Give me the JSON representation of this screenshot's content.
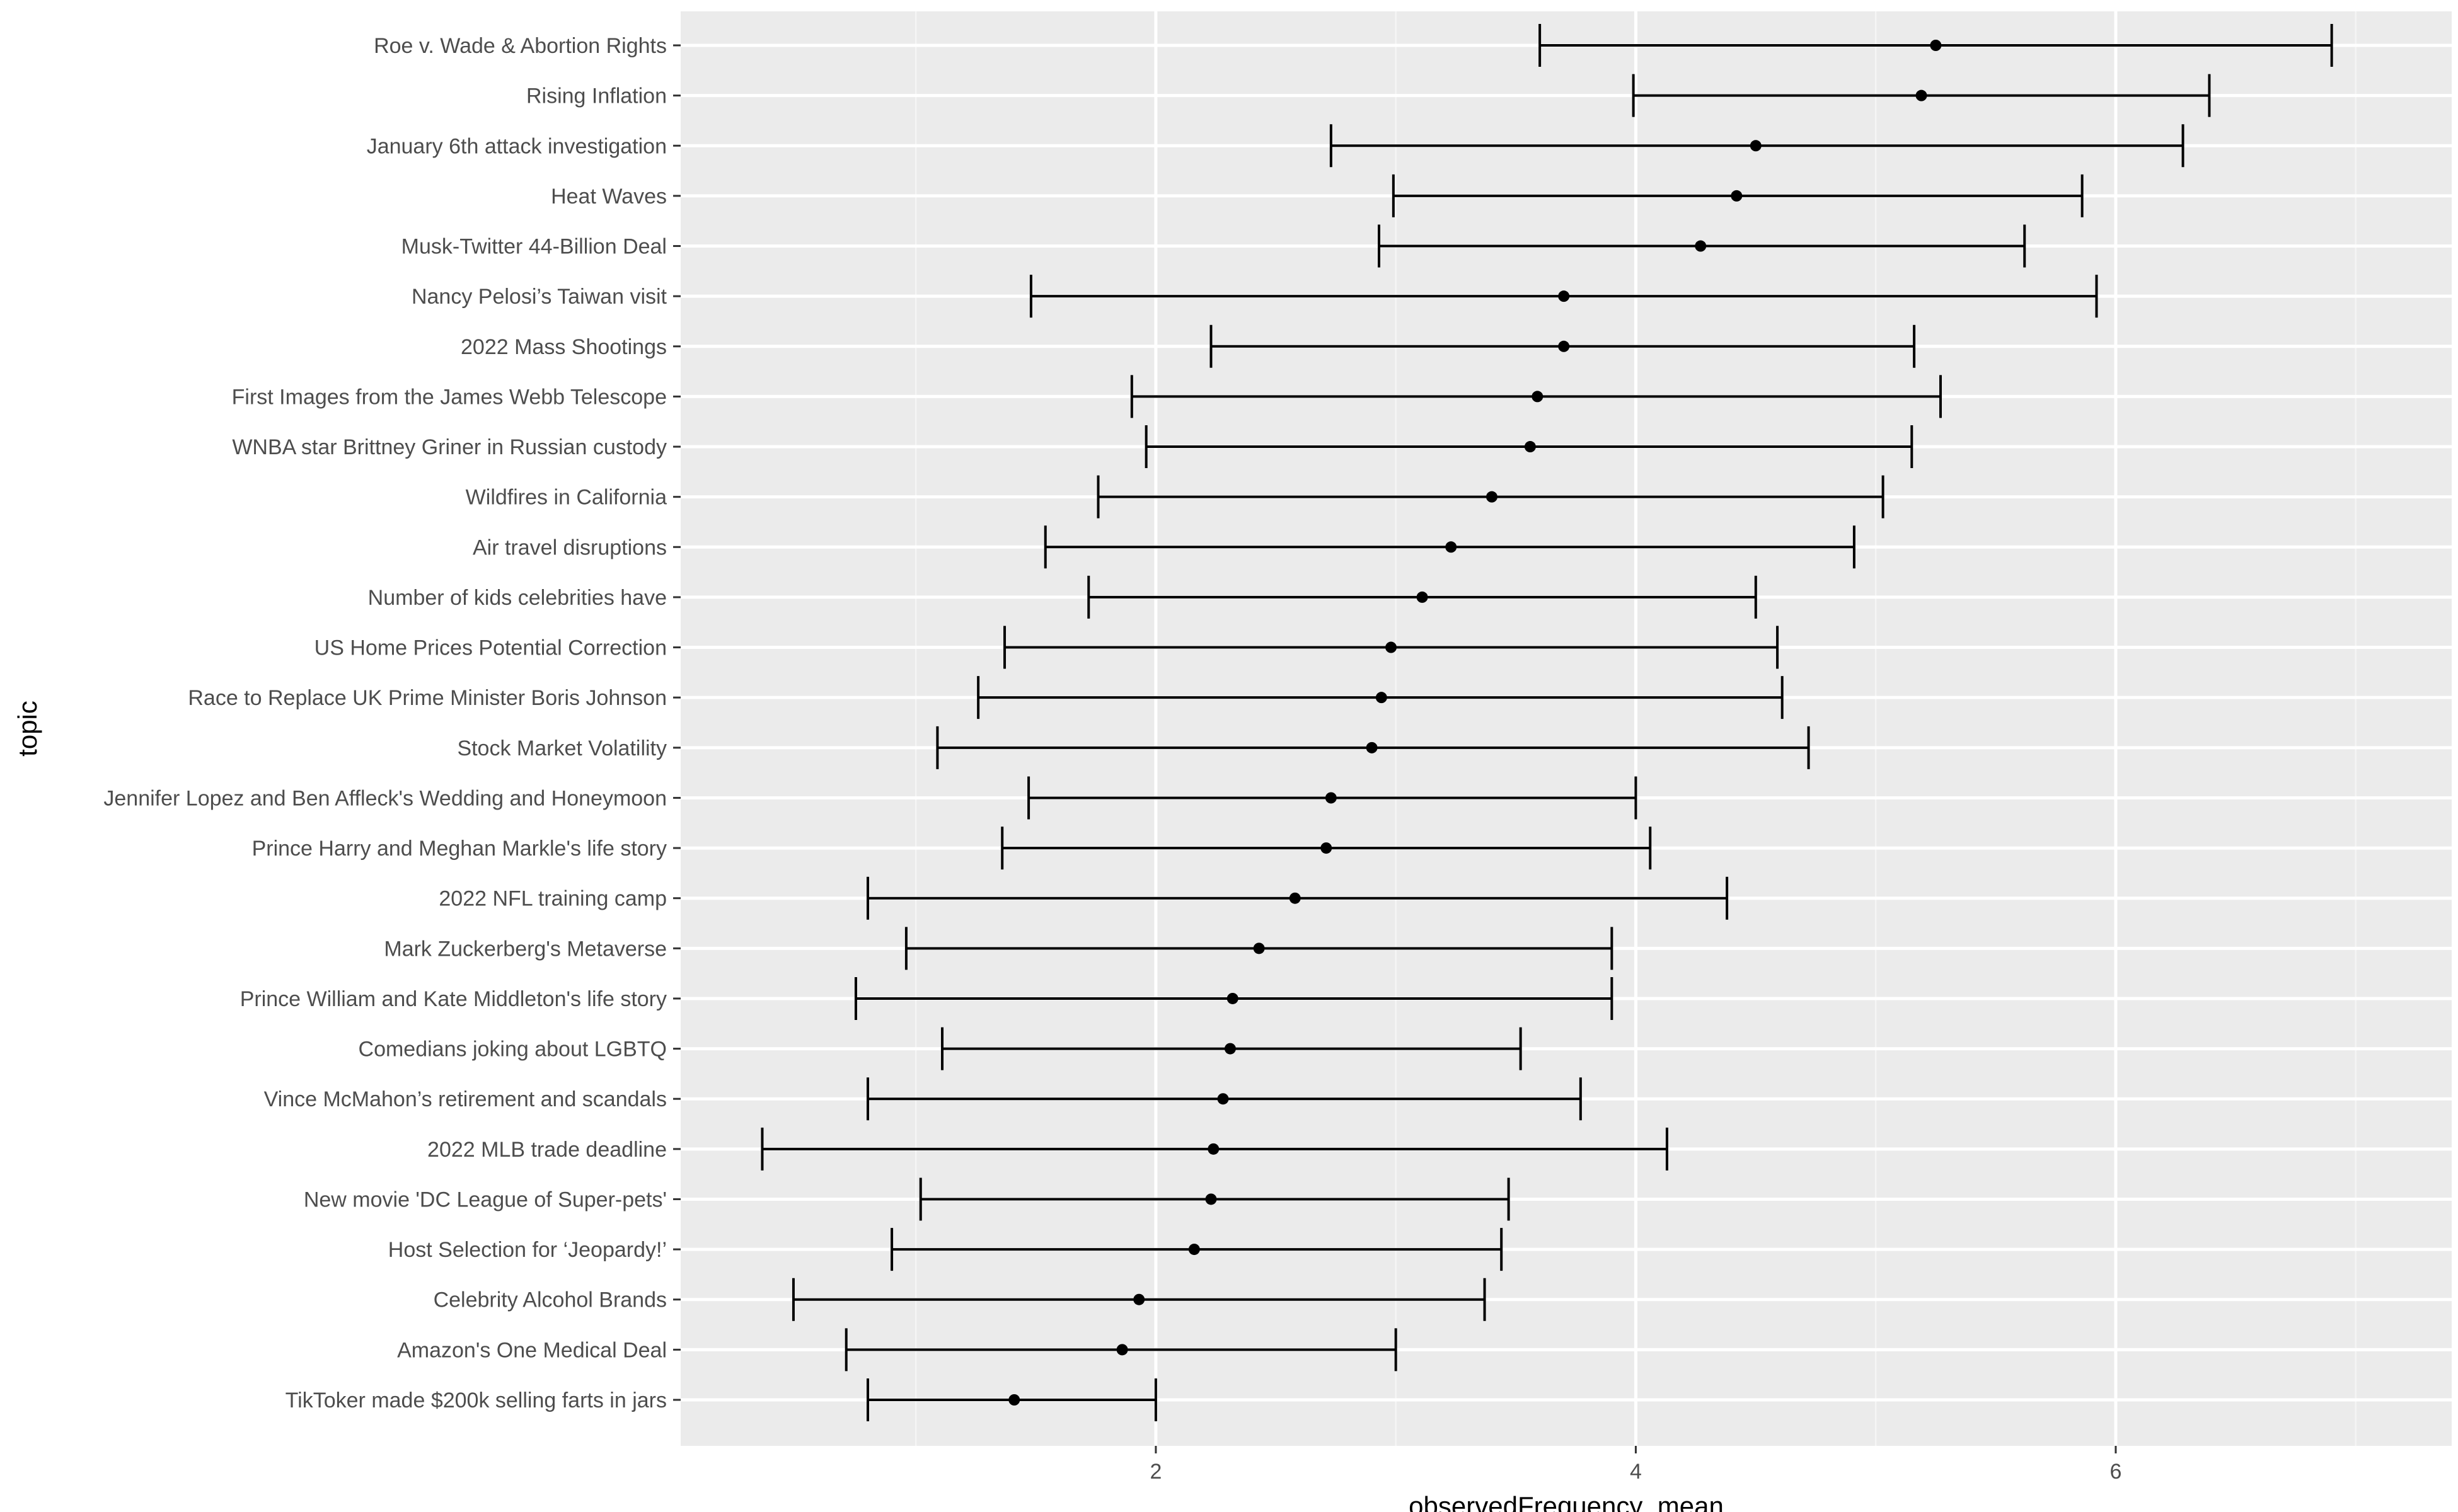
{
  "chart_data": {
    "type": "errorbar",
    "xlabel": "observedFrequency_mean",
    "ylabel": "topic",
    "xlim": [
      0.02,
      7.4
    ],
    "x_ticks": [
      2,
      4,
      6
    ],
    "grid": true,
    "legend": "none",
    "colors": {
      "panel": "#ebebeb",
      "grid_major": "#ffffff",
      "grid_minor": "#f5f5f5",
      "mark": "#000000",
      "tick_text": "#4d4d4d"
    },
    "points": [
      {
        "topic": "Roe v. Wade & Abortion Rights",
        "mean": 5.25,
        "lower": 3.6,
        "upper": 6.9
      },
      {
        "topic": "Rising Inflation",
        "mean": 5.19,
        "lower": 3.99,
        "upper": 6.39
      },
      {
        "topic": "January 6th attack investigation",
        "mean": 4.5,
        "lower": 2.73,
        "upper": 6.28
      },
      {
        "topic": "Heat Waves",
        "mean": 4.42,
        "lower": 2.99,
        "upper": 5.86
      },
      {
        "topic": "Musk-Twitter 44-Billion Deal",
        "mean": 4.27,
        "lower": 2.93,
        "upper": 5.62
      },
      {
        "topic": "Nancy Pelosi’s Taiwan visit",
        "mean": 3.7,
        "lower": 1.48,
        "upper": 5.92
      },
      {
        "topic": "2022 Mass Shootings",
        "mean": 3.7,
        "lower": 2.23,
        "upper": 5.16
      },
      {
        "topic": "First Images from the James Webb Telescope",
        "mean": 3.59,
        "lower": 1.9,
        "upper": 5.27
      },
      {
        "topic": "WNBA star Brittney Griner in Russian custody",
        "mean": 3.56,
        "lower": 1.96,
        "upper": 5.15
      },
      {
        "topic": "Wildfires in California",
        "mean": 3.4,
        "lower": 1.76,
        "upper": 5.03
      },
      {
        "topic": "Air travel disruptions",
        "mean": 3.23,
        "lower": 1.54,
        "upper": 4.91
      },
      {
        "topic": "Number of kids celebrities have",
        "mean": 3.11,
        "lower": 1.72,
        "upper": 4.5
      },
      {
        "topic": "US Home Prices Potential Correction",
        "mean": 2.98,
        "lower": 1.37,
        "upper": 4.59
      },
      {
        "topic": "Race to Replace UK Prime Minister Boris Johnson",
        "mean": 2.94,
        "lower": 1.26,
        "upper": 4.61
      },
      {
        "topic": "Stock Market Volatility",
        "mean": 2.9,
        "lower": 1.09,
        "upper": 4.72
      },
      {
        "topic": "Jennifer Lopez and Ben Affleck's Wedding and Honeymoon",
        "mean": 2.73,
        "lower": 1.47,
        "upper": 4.0
      },
      {
        "topic": "Prince Harry and Meghan Markle's life story",
        "mean": 2.71,
        "lower": 1.36,
        "upper": 4.06
      },
      {
        "topic": "2022 NFL training camp",
        "mean": 2.58,
        "lower": 0.8,
        "upper": 4.38
      },
      {
        "topic": "Mark Zuckerberg's Metaverse",
        "mean": 2.43,
        "lower": 0.96,
        "upper": 3.9
      },
      {
        "topic": "Prince William and Kate Middleton's life story",
        "mean": 2.32,
        "lower": 0.75,
        "upper": 3.9
      },
      {
        "topic": "Comedians joking about LGBTQ",
        "mean": 2.31,
        "lower": 1.11,
        "upper": 3.52
      },
      {
        "topic": "Vince McMahon’s retirement and scandals",
        "mean": 2.28,
        "lower": 0.8,
        "upper": 3.77
      },
      {
        "topic": "2022 MLB trade deadline",
        "mean": 2.24,
        "lower": 0.36,
        "upper": 4.13
      },
      {
        "topic": "New movie 'DC League of Super-pets'",
        "mean": 2.23,
        "lower": 1.02,
        "upper": 3.47
      },
      {
        "topic": "Host Selection for ‘Jeopardy!’",
        "mean": 2.16,
        "lower": 0.9,
        "upper": 3.44
      },
      {
        "topic": "Celebrity Alcohol Brands",
        "mean": 1.93,
        "lower": 0.49,
        "upper": 3.37
      },
      {
        "topic": "Amazon's One Medical Deal",
        "mean": 1.86,
        "lower": 0.71,
        "upper": 3.0
      },
      {
        "topic": "TikToker made $200k selling farts in jars",
        "mean": 1.41,
        "lower": 0.8,
        "upper": 2.0
      }
    ]
  }
}
